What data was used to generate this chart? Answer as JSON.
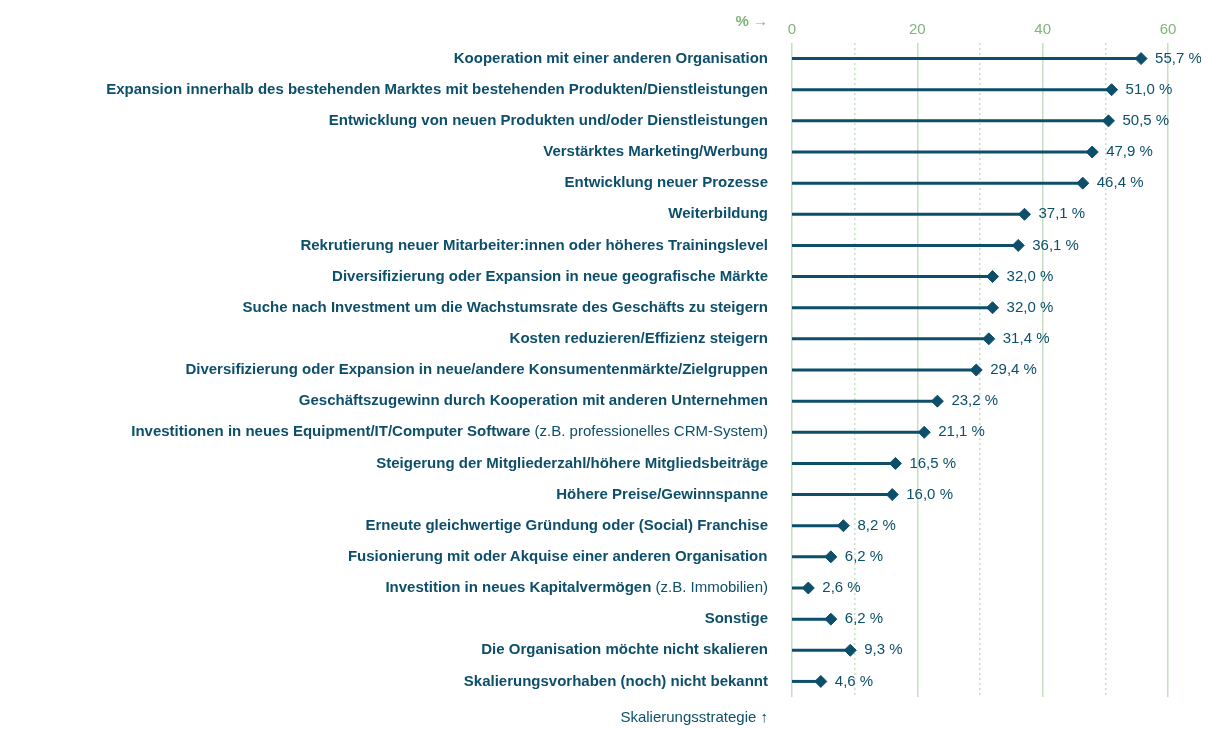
{
  "chart_data": {
    "type": "lollipop",
    "orientation": "horizontal",
    "xlabel": "% →",
    "ylabel": "Skalierungsstrategie ↑",
    "categories": [
      "Kooperation mit einer anderen Organisation",
      "Expansion innerhalb des bestehenden Marktes mit bestehenden Produkten/Dienstleistungen",
      "Entwicklung von neuen Produkten und/oder Dienstleistungen",
      "Verstärktes Marketing/Werbung",
      "Entwicklung neuer Prozesse",
      "Weiterbildung",
      "Rekrutierung neuer Mitarbeiter:innen oder höheres Trainingslevel",
      "Diversifizierung oder Expansion in neue geografische Märkte",
      "Suche nach Investment um die Wachstumsrate des Geschäfts zu steigern",
      "Kosten reduzieren/Effizienz steigern",
      "Diversifizierung oder Expansion in neue/andere Konsumentenmärkte/Zielgruppen",
      "Geschäftszugewinn durch Kooperation mit anderen Unternehmen",
      "Investitionen in neues Equipment/IT/Computer Software (z.B. professionelles CRM-System)",
      "Steigerung der Mitgliederzahl/höhere Mitgliedsbeiträge",
      "Höhere Preise/Gewinnspanne",
      "Erneute gleichwertige Gründung oder (Social) Franchise",
      "Fusionierung mit oder Akquise einer anderen Organisation",
      "Investition in neues Kapitalvermögen (z.B. Immobilien)",
      "Sonstige",
      "Die Organisation möchte nicht skalieren",
      "Skalierungsvorhaben (noch) nicht bekannt"
    ],
    "values": [
      55.7,
      51.0,
      50.5,
      47.9,
      46.4,
      37.1,
      36.1,
      32.0,
      32.0,
      31.4,
      29.4,
      23.2,
      21.1,
      16.5,
      16.0,
      8.2,
      6.2,
      2.6,
      6.2,
      9.3,
      4.6
    ],
    "value_labels": [
      "55,7 %",
      "51,0 %",
      "50,5 %",
      "47,9 %",
      "46,4 %",
      "37,1 %",
      "36,1 %",
      "32,0 %",
      "32,0 %",
      "31,4 %",
      "29,4 %",
      "23,2 %",
      "21,1 %",
      "16,5 %",
      "16,0 %",
      "8,2 %",
      "6,2 %",
      "2,6 %",
      "6,2 %",
      "9,3 %",
      "4,6 %"
    ],
    "color": "#0d4f6b",
    "marker": "diamond",
    "grid": "x",
    "xlim": [
      0,
      60
    ],
    "xticks": [
      0,
      {
        "value": 10,
        "label": null
      },
      20,
      {
        "value": 30,
        "label": null
      },
      40,
      {
        "value": 50,
        "label": null
      },
      60
    ]
  }
}
